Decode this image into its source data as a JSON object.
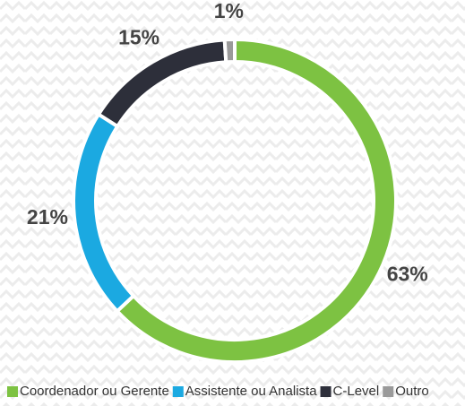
{
  "chart_data": {
    "type": "donut",
    "categories": [
      "Coordenador ou Gerente",
      "Assistente ou Analista",
      "C-Level",
      "Outro"
    ],
    "values": [
      63,
      21,
      15,
      1
    ],
    "value_labels": [
      "63%",
      "21%",
      "15%",
      "1%"
    ],
    "colors": [
      "#7dc242",
      "#1ba9e1",
      "#2d2f3a",
      "#9a9a9a"
    ],
    "legend": "bottom"
  }
}
